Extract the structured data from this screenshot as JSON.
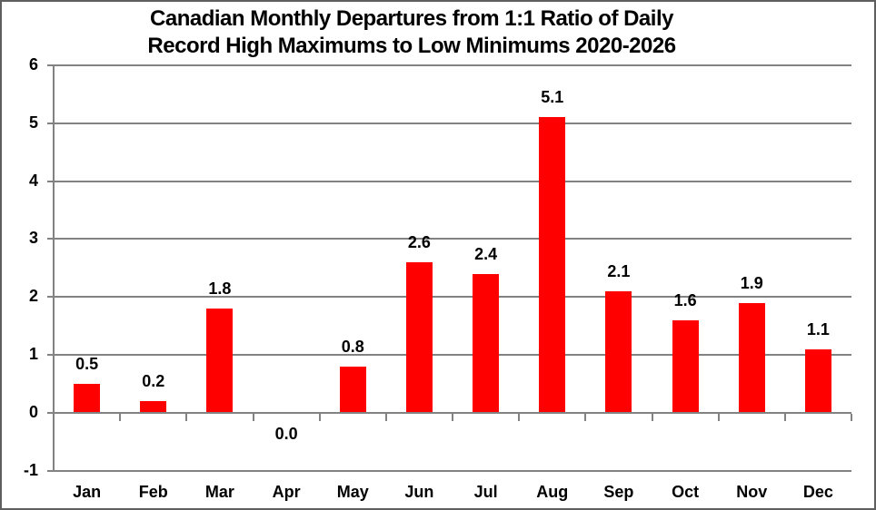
{
  "header": {
    "title_line1": "Canadian Monthly Departures from 1:1 Ratio of Daily",
    "title_line2": "Record High Maximums to Low Minimums 2020-2026"
  },
  "chart_data": {
    "type": "bar",
    "title": "Canadian Monthly Departures from 1:1 Ratio of Daily Record High Maximums to Low Minimums 2020-2026",
    "categories": [
      "Jan",
      "Feb",
      "Mar",
      "Apr",
      "May",
      "Jun",
      "Jul",
      "Aug",
      "Sep",
      "Oct",
      "Nov",
      "Dec"
    ],
    "values": [
      0.5,
      0.2,
      1.8,
      0.0,
      0.8,
      2.6,
      2.4,
      5.1,
      2.1,
      1.6,
      1.9,
      1.1
    ],
    "data_labels": [
      "0.5",
      "0.2",
      "1.8",
      "0.0",
      "0.8",
      "2.6",
      "2.4",
      "5.1",
      "2.1",
      "1.6",
      "1.9",
      "1.1"
    ],
    "xlabel": "",
    "ylabel": "",
    "ylim": [
      -1,
      6
    ],
    "yticks": [
      6,
      5,
      4,
      3,
      2,
      1,
      0,
      -1
    ],
    "grid": true,
    "legend": false,
    "bar_color": "#ff0000",
    "grid_color": "#828282",
    "label_color": "#000000",
    "background_color": "#ffffff"
  }
}
